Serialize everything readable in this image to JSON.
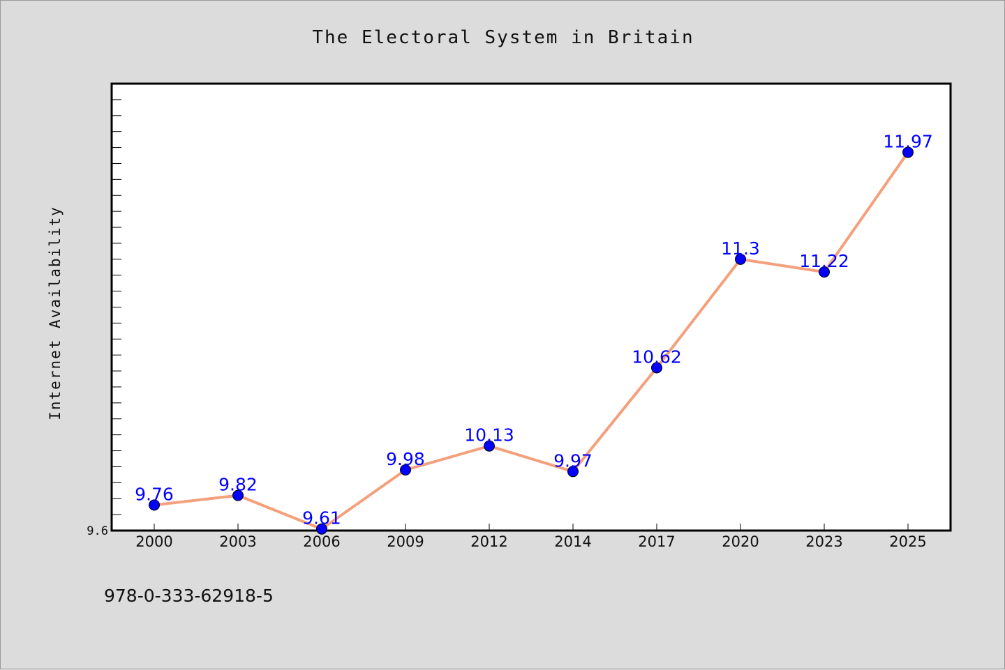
{
  "chart_data": {
    "type": "line",
    "title": "The Electoral System in Britain",
    "xlabel": "",
    "ylabel": "Internet Availability",
    "categories": [
      "2000",
      "2003",
      "2006",
      "2009",
      "2012",
      "2014",
      "2017",
      "2020",
      "2023",
      "2025"
    ],
    "series": [
      {
        "values": [
          9.76,
          9.82,
          9.61,
          9.98,
          10.13,
          9.97,
          10.62,
          11.3,
          11.22,
          11.97
        ]
      }
    ],
    "data_labels": [
      "9.76",
      "9.82",
      "9.61",
      "9.98",
      "10.13",
      "9.97",
      "10.62",
      "11.3",
      "11.22",
      "11.97"
    ],
    "y_tick_labels": [
      "9.6"
    ],
    "ylim": [
      9.6,
      12.4
    ],
    "grid": false,
    "legend": "none",
    "colors": {
      "line": "#f4a07c",
      "marker": "#0000ff",
      "labels": "#0000ff",
      "background": "#dcdcdc",
      "plot": "#ffffff"
    }
  },
  "footer": {
    "text": "978-0-333-62918-5"
  }
}
